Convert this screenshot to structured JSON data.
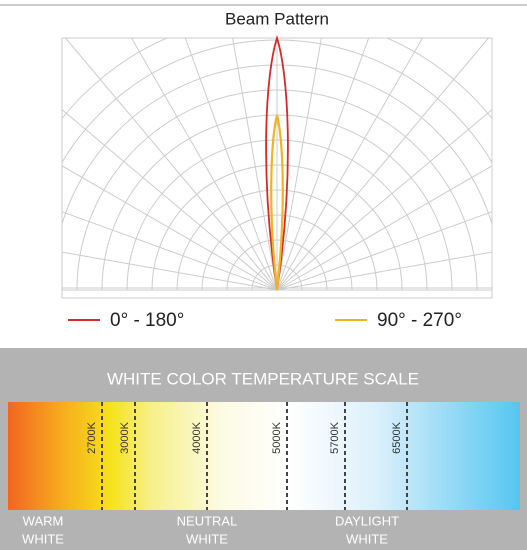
{
  "header": {
    "title": "Beam Pattern"
  },
  "legend": [
    {
      "label": "0° - 180°",
      "color": "#d42a2a"
    },
    {
      "label": "90° - 270°",
      "color": "#f0b323"
    }
  ],
  "scale": {
    "title": "WHITE COLOR TEMPERATURE SCALE",
    "markers": [
      "2700K",
      "3000K",
      "4000K",
      "5000K",
      "5700K",
      "6500K"
    ],
    "zones": [
      {
        "lines": [
          "WARM",
          "WHITE"
        ]
      },
      {
        "lines": [
          "NEUTRAL",
          "WHITE"
        ]
      },
      {
        "lines": [
          "DAYLIGHT",
          "WHITE"
        ]
      }
    ]
  }
}
